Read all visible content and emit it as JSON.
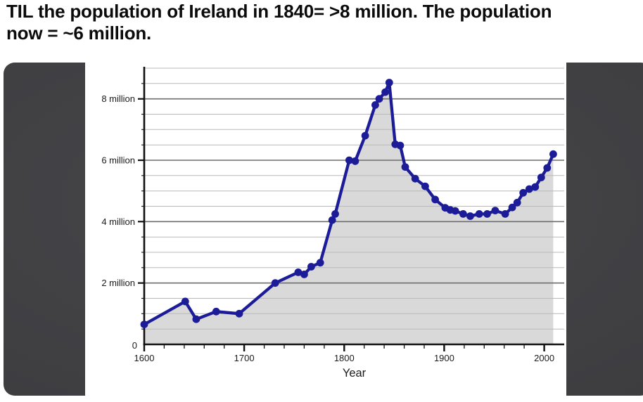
{
  "post": {
    "title_line1": "TIL the population of Ireland in 1840= >8 million. The population",
    "title_line2": "now = ~6 million."
  },
  "media": {
    "card_bg": "#3e3e41"
  },
  "chart_data": {
    "type": "line",
    "title": "",
    "xlabel": "Year",
    "ylabel": "",
    "xlim": [
      1600,
      2020
    ],
    "ylim": [
      0,
      9
    ],
    "grid": true,
    "legend": "none",
    "x_minor_step": 20,
    "y_minor_step": 0.5,
    "origin_label": "0",
    "x_ticks": [
      {
        "v": 1600,
        "label": "1600"
      },
      {
        "v": 1700,
        "label": "1700"
      },
      {
        "v": 1800,
        "label": "1800"
      },
      {
        "v": 1900,
        "label": "1900"
      },
      {
        "v": 2000,
        "label": "2000"
      }
    ],
    "y_ticks": [
      {
        "v": 2,
        "label": "2 million"
      },
      {
        "v": 4,
        "label": "4 million"
      },
      {
        "v": 6,
        "label": "6 million"
      },
      {
        "v": 8,
        "label": "8 million"
      }
    ],
    "series": [
      {
        "name": "Population of Ireland (millions)",
        "x": [
          1600,
          1641,
          1652,
          1672,
          1695,
          1731,
          1754,
          1760,
          1767,
          1776,
          1788,
          1791,
          1805,
          1811,
          1821,
          1831,
          1835,
          1841,
          1845,
          1851,
          1856,
          1861,
          1871,
          1881,
          1891,
          1901,
          1906,
          1911,
          1919,
          1926,
          1935,
          1943,
          1951,
          1961,
          1968,
          1973,
          1979,
          1985,
          1991,
          1997,
          2003,
          2009
        ],
        "y": [
          0.65,
          1.4,
          0.82,
          1.07,
          1.0,
          2.0,
          2.35,
          2.28,
          2.53,
          2.66,
          4.05,
          4.25,
          6.0,
          5.97,
          6.8,
          7.8,
          8.0,
          8.22,
          8.53,
          6.52,
          6.48,
          5.78,
          5.4,
          5.15,
          4.72,
          4.45,
          4.38,
          4.35,
          4.25,
          4.18,
          4.25,
          4.25,
          4.36,
          4.25,
          4.46,
          4.62,
          4.94,
          5.06,
          5.13,
          5.44,
          5.75,
          6.2
        ]
      }
    ],
    "colors": {
      "line": "#1c1c99",
      "area": "#d9d9d9",
      "grid_minor": "#b9b9b9",
      "grid_major": "#6e6e6e",
      "axis": "#111111",
      "text": "#1a1a1a"
    }
  }
}
